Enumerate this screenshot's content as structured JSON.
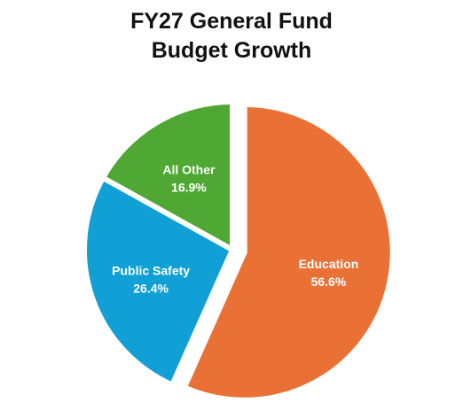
{
  "chart_data": {
    "type": "pie",
    "title_lines": [
      "FY27 General Fund",
      "Budget Growth"
    ],
    "slices": [
      {
        "label": "Education",
        "value": 56.6,
        "value_label": "56.6%",
        "color": "#ea7136",
        "exploded": true
      },
      {
        "label": "Public Safety",
        "value": 26.4,
        "value_label": "26.4%",
        "color": "#11a0d6",
        "exploded": false
      },
      {
        "label": "All Other",
        "value": 16.9,
        "value_label": "16.9%",
        "color": "#4fa833",
        "exploded": false
      }
    ],
    "unit": "%",
    "legend": "none",
    "data_labels": "inside"
  }
}
